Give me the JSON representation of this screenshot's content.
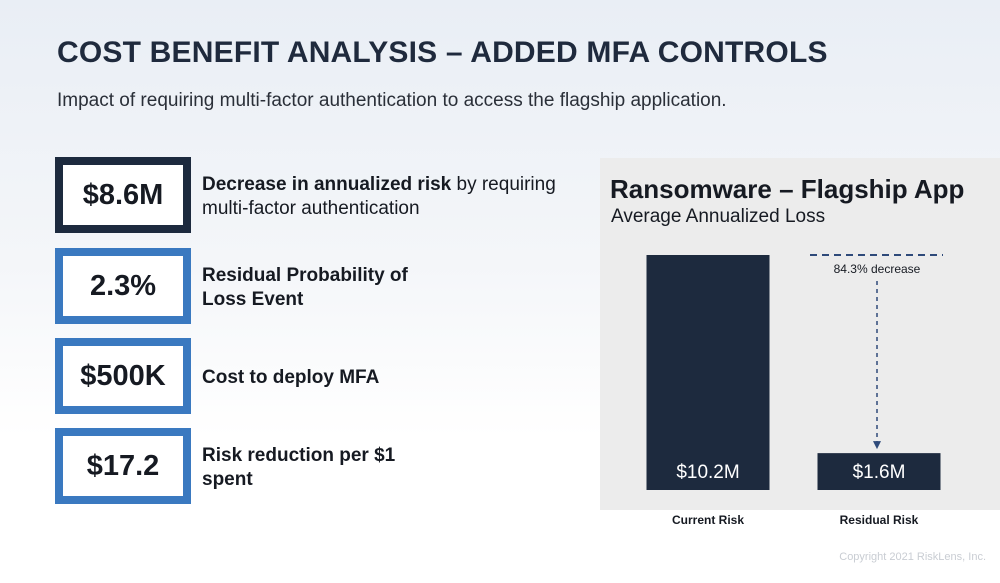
{
  "header": {
    "title": "COST BENEFIT ANALYSIS – ADDED MFA CONTROLS",
    "subtitle": "Impact of requiring multi-factor authentication to access the flagship application."
  },
  "metrics": [
    {
      "value": "$8.6M",
      "desc_bold": "Decrease in annualized risk",
      "desc_rest": " by requiring multi-factor authentication",
      "style": "dark"
    },
    {
      "value": "2.3%",
      "desc_bold": "Residual Probability of Loss Event",
      "desc_rest": "",
      "style": "blue"
    },
    {
      "value": "$500K",
      "desc_bold": "Cost to deploy MFA",
      "desc_rest": "",
      "style": "blue"
    },
    {
      "value": "$17.2",
      "desc_bold": "Risk reduction per $1 spent",
      "desc_rest": "",
      "style": "blue"
    }
  ],
  "colors": {
    "bar": "#1d2a3e",
    "dark_border": "#1d2a3e",
    "blue_border": "#3a79c0",
    "panel_bg": "#ececec",
    "annotation": "#2e4a7a"
  },
  "chart_data": {
    "type": "bar",
    "title": "Ransomware – Flagship App",
    "subtitle": "Average Annualized Loss",
    "categories": [
      "Current Risk",
      "Residual Risk"
    ],
    "values": [
      10.2,
      1.6
    ],
    "value_labels": [
      "$10.2M",
      "$1.6M"
    ],
    "unit": "$M",
    "ylim": [
      0,
      10.2
    ],
    "grid": false,
    "annotation": "84.3% decrease"
  },
  "footer": {
    "copyright": "Copyright 2021 RiskLens, Inc."
  }
}
